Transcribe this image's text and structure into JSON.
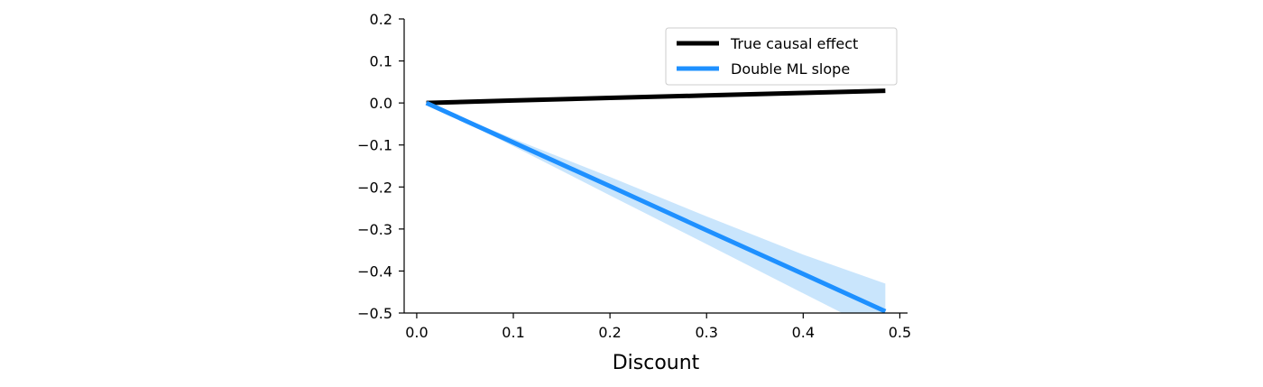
{
  "chart_data": {
    "type": "line",
    "title": "",
    "xlabel": "Discount",
    "ylabel": "",
    "xlim": [
      -0.013,
      0.508
    ],
    "ylim": [
      -0.5,
      0.2
    ],
    "xticks": [
      0.0,
      0.1,
      0.2,
      0.3,
      0.4,
      0.5
    ],
    "xtick_labels": [
      "0.0",
      "0.1",
      "0.2",
      "0.3",
      "0.4",
      "0.5"
    ],
    "yticks": [
      0.2,
      0.1,
      0.0,
      -0.1,
      -0.2,
      -0.3,
      -0.4,
      -0.5
    ],
    "ytick_labels": [
      "0.2",
      "0.1",
      "0.0",
      "−0.1",
      "−0.2",
      "−0.3",
      "−0.4",
      "−0.5"
    ],
    "grid": false,
    "legend_position": "top-right",
    "series": [
      {
        "name": "True causal effect",
        "color": "#000000",
        "x": [
          0.01,
          0.1,
          0.2,
          0.3,
          0.4,
          0.485
        ],
        "y": [
          0.0,
          0.006,
          0.012,
          0.018,
          0.024,
          0.029
        ]
      },
      {
        "name": "Double ML slope",
        "color": "#1e90ff",
        "x": [
          0.01,
          0.1,
          0.2,
          0.3,
          0.4,
          0.485
        ],
        "y": [
          0.0,
          -0.094,
          -0.198,
          -0.303,
          -0.407,
          -0.496
        ],
        "band_lower": [
          0.0,
          -0.103,
          -0.22,
          -0.336,
          -0.453,
          -0.552
        ],
        "band_upper": [
          0.0,
          -0.085,
          -0.176,
          -0.27,
          -0.361,
          -0.43
        ],
        "band_color": "#bfe1fb"
      }
    ]
  }
}
